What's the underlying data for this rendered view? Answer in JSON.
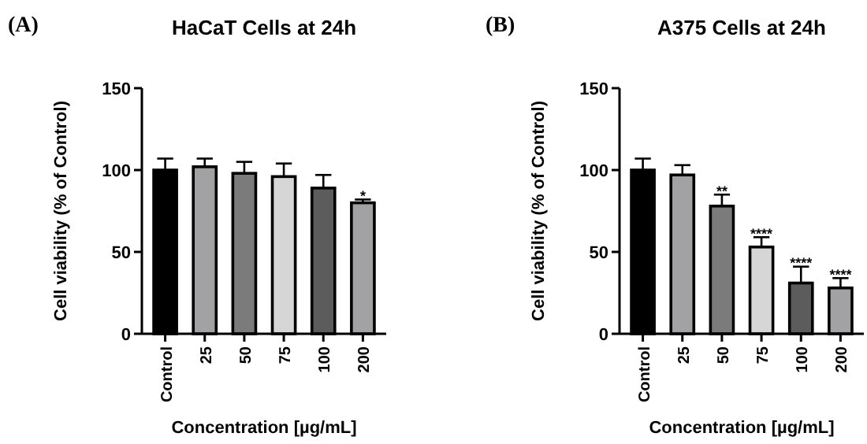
{
  "chart_data": [
    {
      "type": "bar",
      "title": "HaCaT Cells at 24h",
      "xlabel": "Concentration [µg/mL]",
      "ylabel": "Cell viability (% of Control)",
      "categories": [
        "Control",
        "25",
        "50",
        "75",
        "100",
        "200"
      ],
      "values": [
        100,
        102,
        98,
        96,
        89,
        80
      ],
      "colors": [
        "#000000",
        "#a2a2a5",
        "#7b7b7b",
        "#d6d6d6",
        "#5c5c5c",
        "#a2a2a5"
      ],
      "errors": [
        [
          100,
          107
        ],
        [
          102,
          107
        ],
        [
          98,
          105
        ],
        [
          96,
          104
        ],
        [
          89,
          97
        ],
        [
          80,
          82
        ]
      ],
      "ylim": [
        0,
        150
      ],
      "yticks": [
        0,
        50,
        100,
        150
      ],
      "annotations": [
        "(A)",
        {
          "text": "*",
          "x": "200",
          "y": 85
        }
      ]
    },
    {
      "type": "bar",
      "title": "A375 Cells at 24h",
      "xlabel": "Concentration [µg/mL]",
      "ylabel": "Cell viability (% of Control)",
      "categories": [
        "Control",
        "25",
        "50",
        "75",
        "100",
        "200"
      ],
      "values": [
        100,
        97,
        78,
        53,
        31,
        28
      ],
      "colors": [
        "#000000",
        "#a2a2a5",
        "#7b7b7b",
        "#d6d6d6",
        "#5c5c5c",
        "#a2a2a5"
      ],
      "errors": [
        [
          100,
          107
        ],
        [
          97,
          103
        ],
        [
          78,
          85
        ],
        [
          53,
          59
        ],
        [
          31,
          41
        ],
        [
          28,
          34
        ]
      ],
      "ylim": [
        0,
        150
      ],
      "yticks": [
        0,
        50,
        100,
        150
      ],
      "annotations": [
        "(B)",
        {
          "text": "**",
          "x": "50",
          "y": 88
        },
        {
          "text": "****",
          "x": "75",
          "y": 62
        },
        {
          "text": "****",
          "x": "100",
          "y": 44
        },
        {
          "text": "****",
          "x": "200",
          "y": 37
        }
      ]
    }
  ]
}
